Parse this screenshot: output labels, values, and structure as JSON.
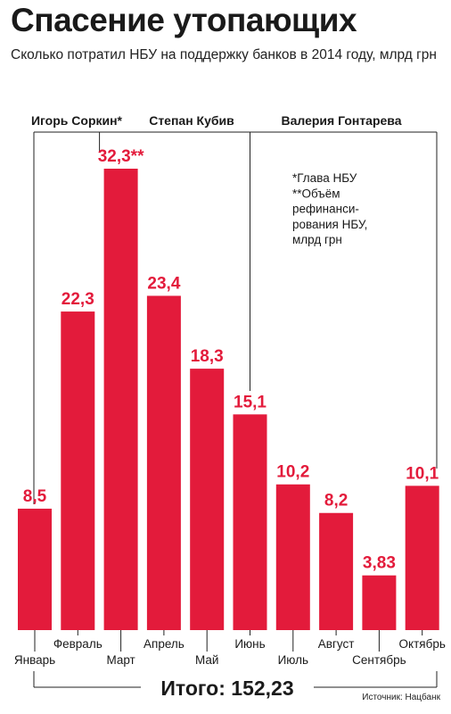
{
  "title": "Спасение утопающих",
  "subtitle": "Сколько потратил НБУ на поддержку банков в 2014 году, млрд грн",
  "note_lines": [
    "*Глава НБУ",
    "**Объём",
    "рефинанси-",
    "рования НБУ,",
    "млрд грн"
  ],
  "total_label": "Итого: 152,23",
  "source": "Источник: Нацбанк",
  "periods": [
    {
      "name": "Игорь Соркин*",
      "from": 0,
      "to": 2
    },
    {
      "name": "Степан Кубив",
      "from": 2,
      "to": 5
    },
    {
      "name": "Валерия Гонтарева",
      "from": 5,
      "to": 9
    }
  ],
  "colors": {
    "bar": "#e31b3b",
    "label": "#e31b3b",
    "text": "#1a1a1a"
  },
  "chart_data": {
    "type": "bar",
    "title": "Спасение утопающих",
    "subtitle": "Сколько потратил НБУ на поддержку банков в 2014 году, млрд грн",
    "categories": [
      "Январь",
      "Февраль",
      "Март",
      "Апрель",
      "Май",
      "Июнь",
      "Июль",
      "Август",
      "Сентябрь",
      "Октябрь"
    ],
    "values": [
      8.5,
      22.3,
      32.3,
      23.4,
      18.3,
      15.1,
      10.2,
      8.2,
      3.83,
      10.1
    ],
    "value_labels": [
      "8,5",
      "22,3",
      "32,3**",
      "23,4",
      "18,3",
      "15,1",
      "10,2",
      "8,2",
      "3,83",
      "10,1"
    ],
    "ylim": [
      0,
      32.3
    ],
    "grid": false,
    "legend": "none"
  }
}
